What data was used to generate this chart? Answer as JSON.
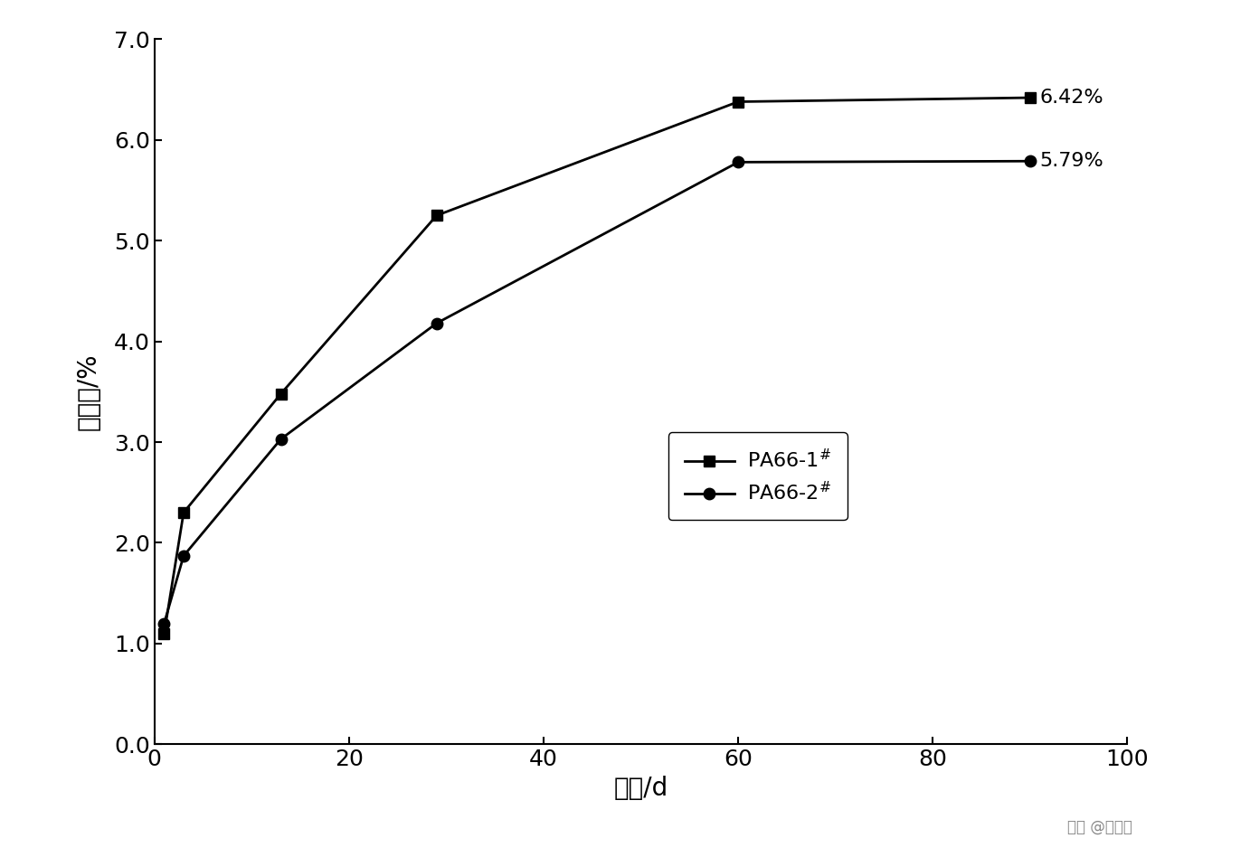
{
  "series": [
    {
      "label": "PA66-1",
      "label_superscript": "#",
      "x": [
        1,
        3,
        13,
        29,
        60,
        90
      ],
      "y": [
        1.1,
        2.3,
        3.48,
        5.25,
        6.38,
        6.42
      ],
      "marker": "s",
      "end_label": "6.42%"
    },
    {
      "label": "PA66-2",
      "label_superscript": "#",
      "x": [
        1,
        3,
        13,
        29,
        60,
        90
      ],
      "y": [
        1.2,
        1.87,
        3.03,
        4.18,
        5.78,
        5.79
      ],
      "marker": "o",
      "end_label": "5.79%"
    }
  ],
  "xlabel": "时间/d",
  "ylabel": "吸水率/%",
  "xlim": [
    0,
    100
  ],
  "ylim": [
    0.0,
    7.0
  ],
  "xticks": [
    0,
    20,
    40,
    60,
    80,
    100
  ],
  "yticks": [
    0.0,
    1.0,
    2.0,
    3.0,
    4.0,
    5.0,
    6.0,
    7.0
  ],
  "line_color": "#000000",
  "background_color": "#ffffff",
  "marker_size": 9,
  "line_width": 2.0,
  "annotation_fontsize": 16,
  "label_fontsize": 20,
  "tick_fontsize": 18,
  "legend_fontsize": 16,
  "watermark": "头条 @塑库网"
}
